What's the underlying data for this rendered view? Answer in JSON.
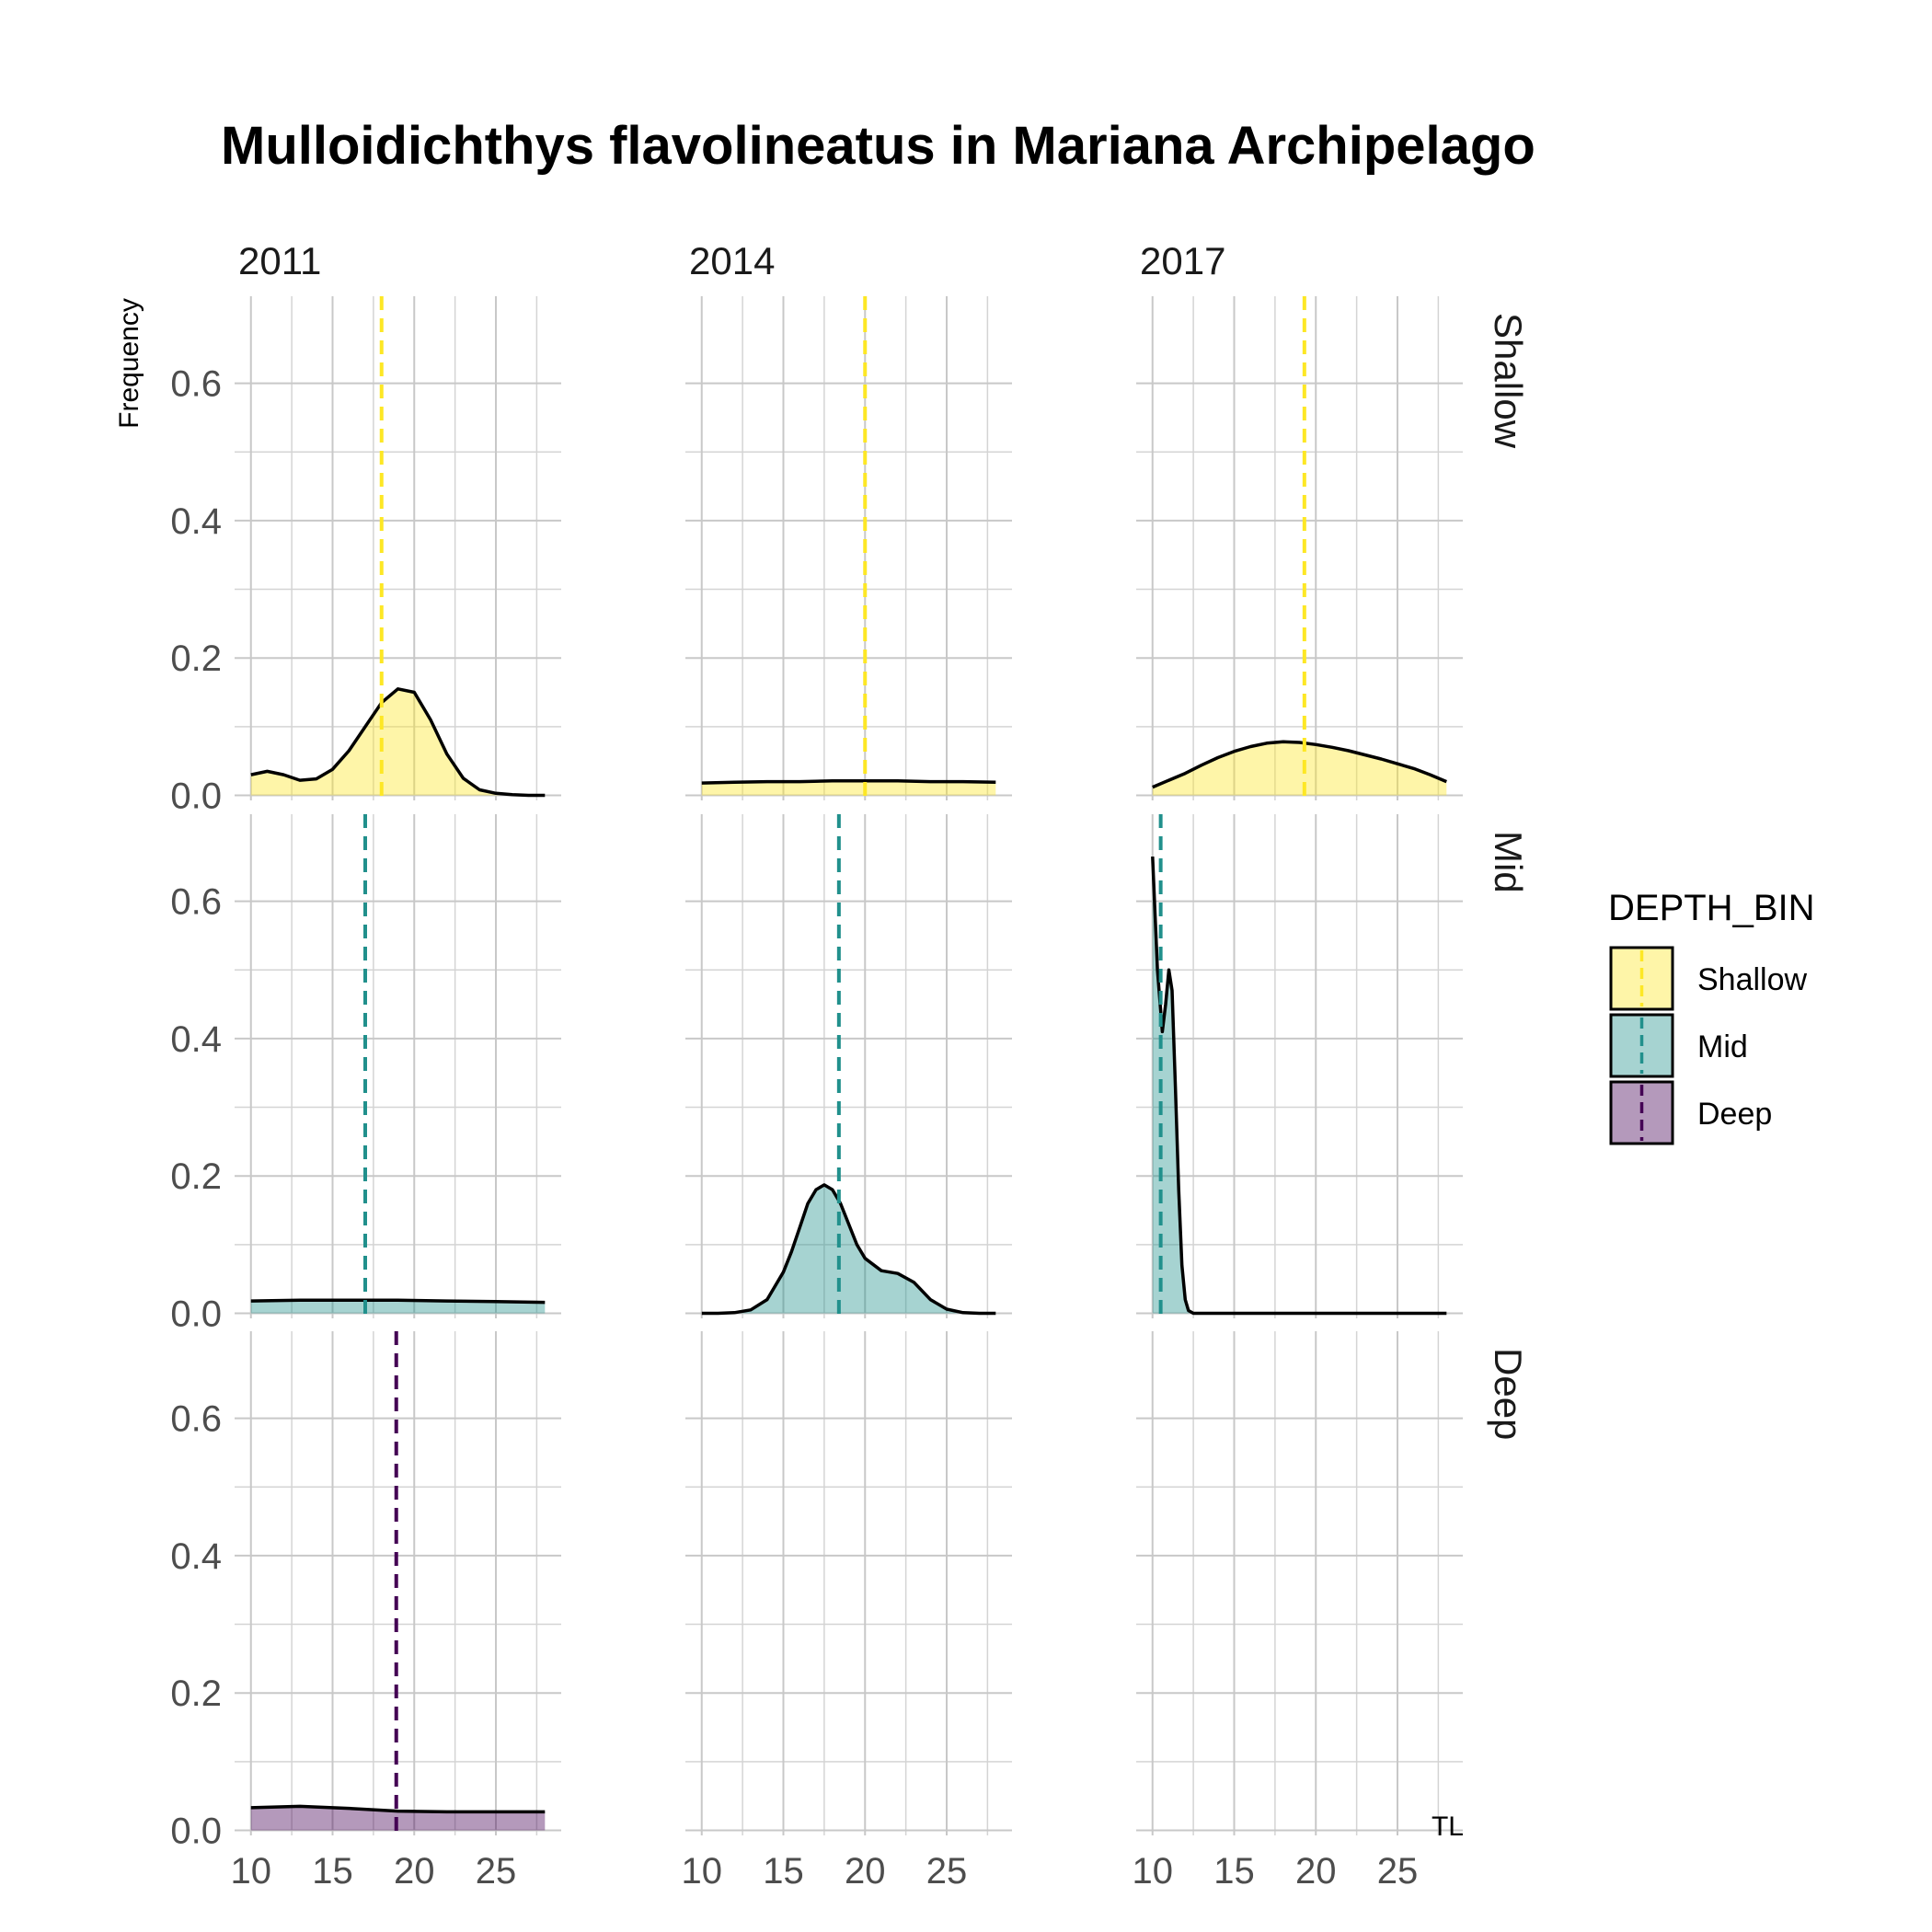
{
  "chart_data": {
    "type": "area",
    "title": "Mulloidichthys flavolineatus in Mariana Archipelago",
    "xlabel": "TL",
    "ylabel": "Frequency",
    "xlim": [
      10,
      28
    ],
    "ylim": [
      0,
      0.69
    ],
    "x_ticks": [
      10,
      15,
      20,
      25
    ],
    "y_ticks": [
      0.0,
      0.2,
      0.4,
      0.6
    ],
    "y_tick_labels": [
      "0.0",
      "0.2",
      "0.4",
      "0.6"
    ],
    "grid": true,
    "legend": {
      "title": "DEPTH_BIN",
      "position": "right",
      "entries": [
        "Shallow",
        "Mid",
        "Deep"
      ]
    },
    "colors": {
      "Shallow": "#FDE725",
      "Mid": "#21908C",
      "Deep": "#440154"
    },
    "columns": [
      "2011",
      "2014",
      "2017"
    ],
    "rows": [
      "Shallow",
      "Mid",
      "Deep"
    ],
    "panels": [
      {
        "year": "2011",
        "depth": "Shallow",
        "mean": 18.0,
        "x": [
          10,
          11,
          12,
          13,
          14,
          15,
          16,
          17,
          18,
          19,
          20,
          21,
          22,
          23,
          24,
          25,
          26,
          27,
          28
        ],
        "y": [
          0.03,
          0.035,
          0.03,
          0.022,
          0.024,
          0.038,
          0.065,
          0.1,
          0.135,
          0.155,
          0.15,
          0.11,
          0.06,
          0.025,
          0.008,
          0.003,
          0.001,
          0.0,
          0.0
        ]
      },
      {
        "year": "2014",
        "depth": "Shallow",
        "mean": 20.0,
        "x": [
          10,
          12,
          14,
          16,
          18,
          20,
          22,
          24,
          26,
          28
        ],
        "y": [
          0.018,
          0.019,
          0.02,
          0.02,
          0.021,
          0.021,
          0.021,
          0.02,
          0.02,
          0.019
        ]
      },
      {
        "year": "2017",
        "depth": "Shallow",
        "mean": 19.3,
        "x": [
          10,
          11,
          12,
          13,
          14,
          15,
          16,
          17,
          18,
          19,
          20,
          21,
          22,
          23,
          24,
          25,
          26,
          27,
          28
        ],
        "y": [
          0.012,
          0.022,
          0.032,
          0.044,
          0.055,
          0.064,
          0.071,
          0.076,
          0.078,
          0.077,
          0.074,
          0.07,
          0.065,
          0.059,
          0.053,
          0.046,
          0.039,
          0.03,
          0.02
        ]
      },
      {
        "year": "2011",
        "depth": "Mid",
        "mean": 17.0,
        "x": [
          10,
          13,
          16,
          19,
          22,
          25,
          28
        ],
        "y": [
          0.018,
          0.019,
          0.019,
          0.019,
          0.018,
          0.017,
          0.016
        ]
      },
      {
        "year": "2014",
        "depth": "Mid",
        "mean": 18.4,
        "x": [
          10,
          11,
          12,
          13,
          14,
          15,
          15.5,
          16,
          16.5,
          17,
          17.5,
          18,
          18.5,
          19,
          19.5,
          20,
          21,
          22,
          23,
          24,
          25,
          26,
          27,
          28
        ],
        "y": [
          0.0,
          0.0,
          0.001,
          0.005,
          0.02,
          0.06,
          0.09,
          0.125,
          0.16,
          0.18,
          0.187,
          0.18,
          0.16,
          0.13,
          0.1,
          0.08,
          0.062,
          0.058,
          0.045,
          0.02,
          0.006,
          0.001,
          0.0,
          0.0
        ]
      },
      {
        "year": "2017",
        "depth": "Mid",
        "mean": 10.5,
        "x": [
          10,
          10.3,
          10.6,
          10.8,
          11.0,
          11.2,
          11.4,
          11.6,
          11.8,
          12.0,
          12.2,
          12.5,
          13,
          15,
          20,
          25,
          28
        ],
        "y": [
          0.665,
          0.5,
          0.41,
          0.45,
          0.5,
          0.47,
          0.33,
          0.18,
          0.07,
          0.02,
          0.004,
          0.0,
          0.0,
          0.0,
          0.0,
          0.0,
          0.0
        ]
      },
      {
        "year": "2011",
        "depth": "Deep",
        "mean": 18.9,
        "x": [
          10,
          13,
          16,
          19,
          22,
          25,
          28
        ],
        "y": [
          0.033,
          0.035,
          0.032,
          0.028,
          0.027,
          0.027,
          0.027
        ]
      },
      {
        "year": "2014",
        "depth": "Deep",
        "mean": null,
        "x": [],
        "y": []
      },
      {
        "year": "2017",
        "depth": "Deep",
        "mean": null,
        "x": [],
        "y": []
      }
    ]
  }
}
